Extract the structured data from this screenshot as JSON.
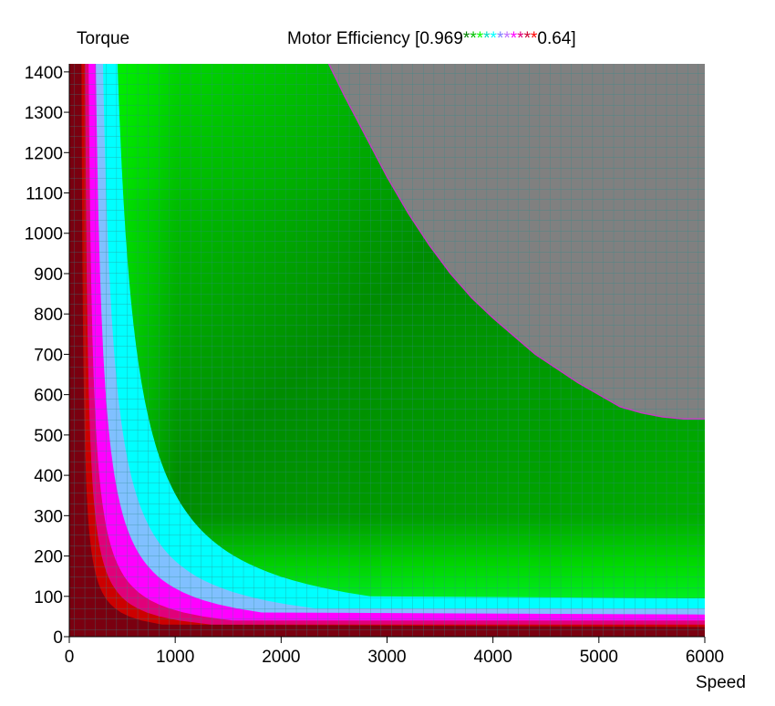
{
  "chart_data": {
    "type": "heatmap",
    "title_prefix": "Motor Efficiency [0.969",
    "title_suffix": "0.64]",
    "legend_stars": "***********",
    "legend_colors": [
      "#ff0000",
      "#cc0033",
      "#e0007a",
      "#ff00ff",
      "#c070ff",
      "#8080ff",
      "#00ffff",
      "#00e0c0",
      "#00ff00",
      "#00c000",
      "#008000"
    ],
    "ylabel": "Torque",
    "xlabel": "Speed",
    "x_ticks": [
      0,
      1000,
      2000,
      3000,
      4000,
      5000,
      6000
    ],
    "y_ticks": [
      0,
      100,
      200,
      300,
      400,
      500,
      600,
      700,
      800,
      900,
      1000,
      1100,
      1200,
      1300,
      1400
    ],
    "xlim": [
      0,
      6000
    ],
    "ylim": [
      0,
      1420
    ],
    "value_range": [
      0.64,
      0.969
    ],
    "colors": {
      "background_region": "#808080",
      "grid_line": "#2a8a8a",
      "high_efficiency": "#008000",
      "mid_efficiency": "#00ff00",
      "cyan_band": "#00ffff",
      "magenta_band": "#ff00ff",
      "low_efficiency": "#cc0000"
    },
    "torque_limit_curve": {
      "speed": [
        2450,
        2600,
        2800,
        3000,
        3200,
        3400,
        3600,
        3800,
        4000,
        4200,
        4400,
        4600,
        4800,
        5000,
        5200,
        5400,
        5600,
        5800,
        6000
      ],
      "torque": [
        1420,
        1340,
        1240,
        1140,
        1050,
        970,
        900,
        840,
        790,
        745,
        700,
        665,
        630,
        600,
        570,
        555,
        545,
        540,
        540
      ]
    },
    "grid": true
  }
}
